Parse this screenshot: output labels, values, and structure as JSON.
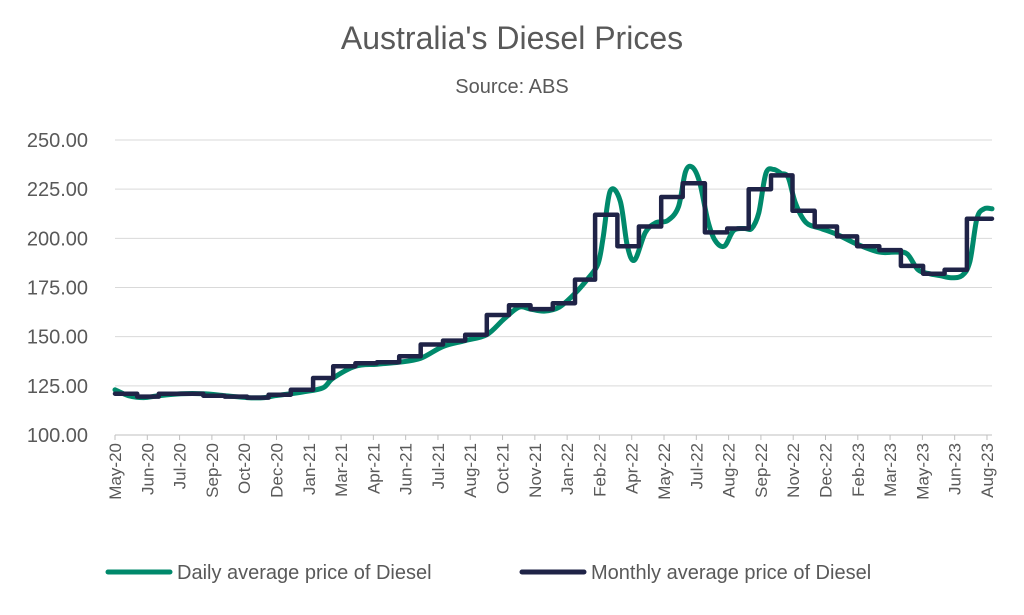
{
  "chart_data": {
    "type": "line",
    "title": "Australia's Diesel Prices",
    "subtitle": "Source: ABS",
    "ylim": [
      100,
      250
    ],
    "yticks": [
      "250.00",
      "225.00",
      "200.00",
      "175.00",
      "150.00",
      "125.00",
      "100.00"
    ],
    "ytick_values": [
      250,
      225,
      200,
      175,
      150,
      125,
      100
    ],
    "grid": "horizontal",
    "legend_position": "bottom",
    "x_start": "2020-05-01",
    "x_end": "2023-09-05",
    "xtick_labels": [
      "May-20",
      "Jun-20",
      "Jul-20",
      "Sep-20",
      "Oct-20",
      "Dec-20",
      "Jan-21",
      "Mar-21",
      "Apr-21",
      "Jun-21",
      "Jul-21",
      "Aug-21",
      "Oct-21",
      "Nov-21",
      "Jan-22",
      "Feb-22",
      "Apr-22",
      "May-22",
      "Jul-22",
      "Aug-22",
      "Sep-22",
      "Nov-22",
      "Dec-22",
      "Feb-23",
      "Mar-23",
      "May-23",
      "Jun-23",
      "Aug-23"
    ],
    "xtick_dates": [
      "2020-05-01",
      "2020-06-15",
      "2020-07-30",
      "2020-09-13",
      "2020-10-28",
      "2020-12-12",
      "2021-01-26",
      "2021-03-12",
      "2021-04-26",
      "2021-06-10",
      "2021-07-25",
      "2021-09-08",
      "2021-10-23",
      "2021-12-07",
      "2022-01-21",
      "2022-03-07",
      "2022-04-21",
      "2022-06-05",
      "2022-07-20",
      "2022-09-03",
      "2022-10-18",
      "2022-12-02",
      "2023-01-16",
      "2023-03-02",
      "2023-04-16",
      "2023-05-31",
      "2023-07-15",
      "2023-08-29"
    ],
    "series": [
      {
        "name": "Daily average price of Diesel",
        "color": "#00896b",
        "style": "smooth",
        "x": [
          "2020-05-01",
          "2020-05-20",
          "2020-06-10",
          "2020-07-01",
          "2020-08-01",
          "2020-09-01",
          "2020-10-01",
          "2020-11-01",
          "2020-11-25",
          "2020-12-10",
          "2021-01-01",
          "2021-01-20",
          "2021-02-15",
          "2021-03-01",
          "2021-04-01",
          "2021-05-01",
          "2021-06-01",
          "2021-07-01",
          "2021-08-01",
          "2021-09-01",
          "2021-10-01",
          "2021-10-25",
          "2021-11-15",
          "2021-12-01",
          "2021-12-20",
          "2022-01-10",
          "2022-02-01",
          "2022-02-20",
          "2022-03-05",
          "2022-03-12",
          "2022-03-22",
          "2022-04-05",
          "2022-04-15",
          "2022-04-25",
          "2022-05-10",
          "2022-05-25",
          "2022-06-10",
          "2022-06-25",
          "2022-07-05",
          "2022-07-15",
          "2022-07-25",
          "2022-08-05",
          "2022-08-15",
          "2022-08-28",
          "2022-09-10",
          "2022-09-25",
          "2022-10-05",
          "2022-10-15",
          "2022-10-25",
          "2022-11-05",
          "2022-11-15",
          "2022-11-25",
          "2022-12-05",
          "2022-12-20",
          "2023-01-10",
          "2023-02-01",
          "2023-03-01",
          "2023-04-01",
          "2023-04-25",
          "2023-05-10",
          "2023-05-25",
          "2023-06-10",
          "2023-06-25",
          "2023-07-10",
          "2023-07-25",
          "2023-08-05",
          "2023-08-15",
          "2023-08-25",
          "2023-09-05"
        ],
        "values": [
          123,
          120,
          119,
          120,
          121,
          121,
          120,
          119,
          119,
          120,
          121,
          122,
          124,
          129,
          135,
          136,
          137,
          139,
          145,
          148,
          151,
          159,
          165,
          164,
          163,
          165,
          172,
          180,
          187,
          200,
          224,
          219,
          196,
          189,
          203,
          208,
          209,
          216,
          234,
          236,
          228,
          209,
          199,
          196,
          204,
          205,
          205,
          213,
          233,
          235,
          233,
          231,
          218,
          208,
          205,
          202,
          197,
          193,
          193,
          192,
          184,
          182,
          181,
          180,
          181,
          188,
          210,
          215,
          215
        ]
      },
      {
        "name": "Monthly average price of Diesel",
        "color": "#1f2347",
        "style": "step",
        "x": [
          "2020-05-01",
          "2020-06-01",
          "2020-07-01",
          "2020-08-01",
          "2020-09-01",
          "2020-10-01",
          "2020-11-01",
          "2020-12-01",
          "2021-01-01",
          "2021-02-01",
          "2021-03-01",
          "2021-04-01",
          "2021-05-01",
          "2021-06-01",
          "2021-07-01",
          "2021-08-01",
          "2021-09-01",
          "2021-10-01",
          "2021-11-01",
          "2021-12-01",
          "2022-01-01",
          "2022-02-01",
          "2022-03-01",
          "2022-04-01",
          "2022-05-01",
          "2022-06-01",
          "2022-07-01",
          "2022-08-01",
          "2022-09-01",
          "2022-10-01",
          "2022-11-01",
          "2022-12-01",
          "2023-01-01",
          "2023-02-01",
          "2023-03-01",
          "2023-04-01",
          "2023-05-01",
          "2023-06-01",
          "2023-07-01",
          "2023-08-01"
        ],
        "values": [
          121,
          119.5,
          121,
          121,
          120,
          119.5,
          119,
          120.5,
          123,
          129,
          135,
          136.5,
          137,
          140,
          146,
          148,
          151,
          161,
          166,
          164,
          167,
          179,
          212,
          196,
          206,
          221,
          228,
          203,
          205,
          225,
          232,
          214,
          206,
          201,
          196,
          194,
          186,
          182,
          184,
          210
        ]
      }
    ]
  }
}
